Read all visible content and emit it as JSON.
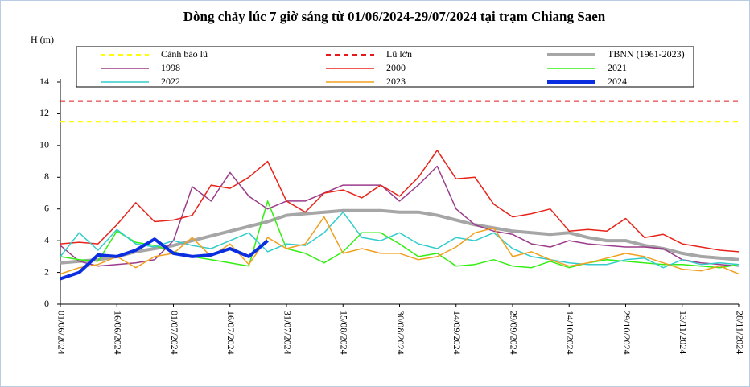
{
  "chart_data": {
    "type": "line",
    "title": "Dòng chảy lúc 7 giờ sáng từ 01/06/2024-29/07/2024 tại trạm Chiang Saen",
    "y_label": "H (m)",
    "categories": [
      "01/06/2024",
      null,
      null,
      "16/06/2024",
      null,
      null,
      "01/07/2024",
      null,
      null,
      "16/07/2024",
      null,
      null,
      "31/07/2024",
      null,
      null,
      "15/08/2024",
      null,
      null,
      "30/08/2024",
      null,
      null,
      "14/09/2024",
      null,
      null,
      "29/09/2024",
      null,
      null,
      "14/10/2024",
      null,
      null,
      "29/10/2024",
      null,
      null,
      "13/11/2024",
      null,
      null,
      "28/11/2024"
    ],
    "ylim": [
      0,
      14
    ],
    "yticks": [
      0,
      2,
      4,
      6,
      8,
      10,
      12,
      14
    ],
    "series": [
      {
        "name": "Cảnh báo lũ",
        "color": "#ffff00",
        "dashed": true,
        "line_width": 2,
        "level": 11.5
      },
      {
        "name": "Lũ lớn",
        "color": "#e41a1c",
        "dashed": true,
        "line_width": 2,
        "level": 12.8
      },
      {
        "name": "TBNN (1961-2023)",
        "color": "#a6a6a6",
        "line_width": 4,
        "values": [
          2.6,
          2.7,
          2.8,
          3.0,
          3.3,
          3.5,
          3.7,
          4.0,
          4.3,
          4.6,
          4.9,
          5.2,
          5.6,
          5.7,
          5.8,
          5.9,
          5.9,
          5.9,
          5.8,
          5.8,
          5.6,
          5.3,
          5.0,
          4.8,
          4.6,
          4.5,
          4.4,
          4.5,
          4.2,
          4.0,
          4.0,
          3.7,
          3.5,
          3.2,
          3.0,
          2.9,
          2.8
        ]
      },
      {
        "name": "1998",
        "color": "#9b3c8a",
        "line_width": 1.5,
        "values": [
          3.7,
          2.7,
          2.4,
          2.5,
          2.6,
          2.8,
          4.0,
          7.4,
          6.5,
          8.3,
          6.8,
          6.0,
          6.5,
          6.5,
          7.0,
          7.5,
          7.5,
          7.5,
          6.5,
          7.5,
          8.7,
          6.0,
          5.0,
          4.6,
          4.4,
          3.8,
          3.6,
          4.0,
          3.8,
          3.7,
          3.6,
          3.6,
          3.5,
          2.8,
          2.6,
          2.5,
          2.4
        ]
      },
      {
        "name": "2000",
        "color": "#e8231a",
        "line_width": 1.5,
        "values": [
          3.8,
          3.9,
          3.8,
          5.0,
          6.4,
          5.2,
          5.3,
          5.6,
          7.5,
          7.3,
          8.0,
          9.0,
          6.5,
          5.8,
          7.0,
          7.2,
          6.7,
          7.5,
          6.8,
          8.0,
          9.7,
          7.9,
          8.0,
          6.3,
          5.5,
          5.7,
          6.0,
          4.6,
          4.7,
          4.6,
          5.4,
          4.2,
          4.4,
          3.8,
          3.6,
          3.4,
          3.3
        ]
      },
      {
        "name": "2021",
        "color": "#33ee11",
        "line_width": 1.5,
        "values": [
          3.0,
          2.8,
          2.7,
          4.6,
          3.9,
          3.7,
          3.3,
          3.0,
          2.8,
          2.6,
          2.4,
          6.5,
          3.5,
          3.2,
          2.6,
          3.3,
          4.5,
          4.5,
          3.8,
          3.0,
          3.2,
          2.4,
          2.5,
          2.8,
          2.4,
          2.3,
          2.7,
          2.3,
          2.6,
          2.8,
          2.7,
          2.6,
          2.5,
          2.5,
          2.4,
          2.3,
          2.5
        ]
      },
      {
        "name": "2022",
        "color": "#33cccc",
        "line_width": 1.5,
        "values": [
          3.0,
          4.5,
          3.4,
          4.7,
          3.8,
          3.6,
          4.0,
          3.7,
          3.5,
          4.0,
          4.5,
          3.3,
          3.8,
          3.7,
          4.5,
          5.8,
          4.2,
          4.0,
          4.5,
          3.8,
          3.5,
          4.2,
          4.0,
          4.5,
          3.5,
          3.0,
          2.8,
          2.6,
          2.5,
          2.5,
          2.8,
          2.9,
          2.3,
          2.8,
          2.5,
          2.6,
          2.5
        ]
      },
      {
        "name": "2023",
        "color": "#f0a020",
        "line_width": 1.5,
        "values": [
          1.9,
          2.3,
          2.5,
          3.0,
          2.3,
          3.0,
          3.2,
          4.2,
          3.0,
          3.8,
          2.5,
          4.2,
          3.5,
          3.8,
          5.5,
          3.2,
          3.5,
          3.2,
          3.2,
          2.8,
          3.0,
          3.6,
          4.5,
          4.8,
          3.0,
          3.3,
          2.8,
          2.4,
          2.6,
          2.9,
          3.2,
          3.0,
          2.6,
          2.2,
          2.1,
          2.4,
          1.9
        ]
      },
      {
        "name": "2024",
        "color": "#0b2ee0",
        "line_width": 4,
        "values": [
          1.6,
          2.0,
          3.1,
          3.0,
          3.4,
          4.1,
          3.2,
          3.0,
          3.1,
          3.5,
          3.0,
          4.0,
          null,
          null,
          null,
          null,
          null,
          null,
          null,
          null,
          null,
          null,
          null,
          null,
          null,
          null,
          null,
          null,
          null,
          null,
          null,
          null,
          null,
          null,
          null,
          null,
          null
        ]
      }
    ]
  }
}
